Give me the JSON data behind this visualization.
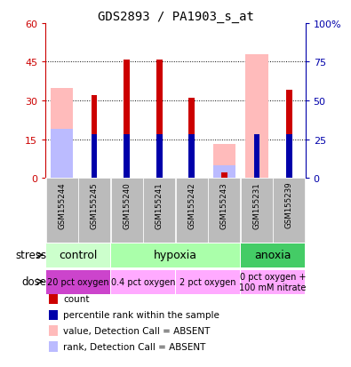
{
  "title": "GDS2893 / PA1903_s_at",
  "samples": [
    "GSM155244",
    "GSM155245",
    "GSM155240",
    "GSM155241",
    "GSM155242",
    "GSM155243",
    "GSM155231",
    "GSM155239"
  ],
  "count_values": [
    0,
    32,
    46,
    46,
    31,
    2,
    0,
    34
  ],
  "rank_values": [
    0,
    17,
    17,
    17,
    17,
    4,
    17,
    17
  ],
  "absent_value_values": [
    35,
    0,
    0,
    0,
    0,
    13,
    48,
    0
  ],
  "absent_rank_values": [
    19,
    0,
    0,
    0,
    0,
    5,
    0,
    0
  ],
  "count_present": [
    false,
    true,
    true,
    true,
    true,
    true,
    false,
    true
  ],
  "rank_present": [
    false,
    true,
    true,
    true,
    true,
    false,
    true,
    true
  ],
  "absent_value_present": [
    true,
    false,
    false,
    false,
    false,
    true,
    true,
    false
  ],
  "absent_rank_present": [
    true,
    false,
    false,
    false,
    false,
    true,
    false,
    false
  ],
  "ylim": [
    0,
    60
  ],
  "yticks": [
    0,
    15,
    30,
    45,
    60
  ],
  "ytick_labels_left": [
    "0",
    "15",
    "30",
    "45",
    "60"
  ],
  "ytick_labels_right": [
    "0",
    "25",
    "50",
    "75",
    "100%"
  ],
  "count_color": "#cc0000",
  "rank_color": "#0000aa",
  "absent_value_color": "#ffbbbb",
  "absent_rank_color": "#bbbbff",
  "stress_groups": [
    {
      "label": "control",
      "cols": [
        0,
        1
      ],
      "color": "#ccffcc"
    },
    {
      "label": "hypoxia",
      "cols": [
        2,
        3,
        4,
        5
      ],
      "color": "#aaffaa"
    },
    {
      "label": "anoxia",
      "cols": [
        6,
        7
      ],
      "color": "#44cc66"
    }
  ],
  "dose_groups": [
    {
      "label": "20 pct oxygen",
      "cols": [
        0,
        1
      ],
      "color": "#dd44dd"
    },
    {
      "label": "0.4 pct oxygen",
      "cols": [
        2,
        3
      ],
      "color": "#ffaaff"
    },
    {
      "label": "2 pct oxygen",
      "cols": [
        4,
        5
      ],
      "color": "#ffaaff"
    },
    {
      "label": "0 pct oxygen +\n100 mM nitrate",
      "cols": [
        6,
        7
      ],
      "color": "#ffaaff"
    }
  ],
  "legend_items": [
    {
      "label": "count",
      "color": "#cc0000"
    },
    {
      "label": "percentile rank within the sample",
      "color": "#0000aa"
    },
    {
      "label": "value, Detection Call = ABSENT",
      "color": "#ffbbbb"
    },
    {
      "label": "rank, Detection Call = ABSENT",
      "color": "#bbbbff"
    }
  ],
  "sample_bg_color": "#bbbbbb",
  "stress_label": "stress",
  "dose_label": "dose"
}
